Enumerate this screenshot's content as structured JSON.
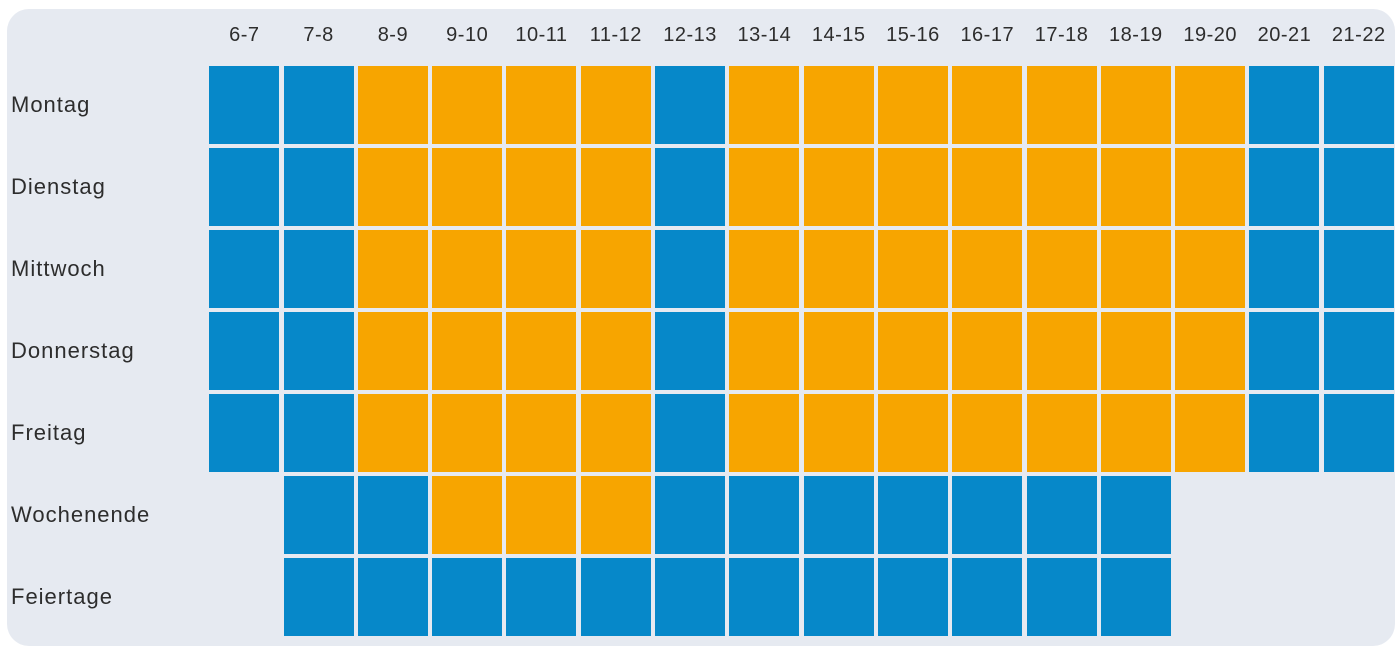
{
  "colors": {
    "blue": "#0688C9",
    "orange": "#F7A500",
    "panel_bg": "#E6EAF1",
    "page_bg": "#FFFFFF",
    "text": "#2D2D2D"
  },
  "chart_data": {
    "type": "heatmap",
    "title": "",
    "x_labels": [
      "6-7",
      "7-8",
      "8-9",
      "9-10",
      "10-11",
      "11-12",
      "12-13",
      "13-14",
      "14-15",
      "15-16",
      "16-17",
      "17-18",
      "18-19",
      "19-20",
      "20-21",
      "21-22"
    ],
    "y_labels": [
      "Montag",
      "Dienstag",
      "Mittwoch",
      "Donnerstag",
      "Freitag",
      "Wochenende",
      "Feiertage"
    ],
    "cell_color_map": {
      "blue": "#0688C9",
      "orange": "#F7A500",
      "none": "transparent"
    },
    "values": [
      [
        "blue",
        "blue",
        "orange",
        "orange",
        "orange",
        "orange",
        "blue",
        "orange",
        "orange",
        "orange",
        "orange",
        "orange",
        "orange",
        "orange",
        "blue",
        "blue"
      ],
      [
        "blue",
        "blue",
        "orange",
        "orange",
        "orange",
        "orange",
        "blue",
        "orange",
        "orange",
        "orange",
        "orange",
        "orange",
        "orange",
        "orange",
        "blue",
        "blue"
      ],
      [
        "blue",
        "blue",
        "orange",
        "orange",
        "orange",
        "orange",
        "blue",
        "orange",
        "orange",
        "orange",
        "orange",
        "orange",
        "orange",
        "orange",
        "blue",
        "blue"
      ],
      [
        "blue",
        "blue",
        "orange",
        "orange",
        "orange",
        "orange",
        "blue",
        "orange",
        "orange",
        "orange",
        "orange",
        "orange",
        "orange",
        "orange",
        "blue",
        "blue"
      ],
      [
        "blue",
        "blue",
        "orange",
        "orange",
        "orange",
        "orange",
        "blue",
        "orange",
        "orange",
        "orange",
        "orange",
        "orange",
        "orange",
        "orange",
        "blue",
        "blue"
      ],
      [
        "none",
        "blue",
        "blue",
        "orange",
        "orange",
        "orange",
        "blue",
        "blue",
        "blue",
        "blue",
        "blue",
        "blue",
        "blue",
        "none",
        "none",
        "none"
      ],
      [
        "none",
        "blue",
        "blue",
        "blue",
        "blue",
        "blue",
        "blue",
        "blue",
        "blue",
        "blue",
        "blue",
        "blue",
        "blue",
        "none",
        "none",
        "none"
      ]
    ],
    "layout": {
      "grid_gaps": true,
      "axis_ranges": "categorical 16 hour-slots x 7 day-rows",
      "legend_position": "none"
    }
  }
}
